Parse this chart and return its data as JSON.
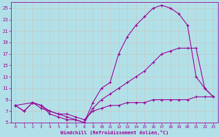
{
  "background_color": "#b2e0e8",
  "grid_color": "#c8c8c8",
  "line_color": "#990099",
  "marker": "+",
  "xlabel": "Windchill (Refroidissement éolien,°C)",
  "xlim": [
    -0.5,
    23.5
  ],
  "ylim": [
    5,
    26
  ],
  "yticks": [
    5,
    7,
    9,
    11,
    13,
    15,
    17,
    19,
    21,
    23,
    25
  ],
  "xticks": [
    0,
    1,
    2,
    3,
    4,
    5,
    6,
    7,
    8,
    9,
    10,
    11,
    12,
    13,
    14,
    15,
    16,
    17,
    18,
    19,
    20,
    21,
    22,
    23
  ],
  "series": [
    {
      "x": [
        0,
        1,
        2,
        3,
        4,
        5,
        6,
        7,
        8,
        9,
        10,
        11,
        12,
        13,
        14,
        15,
        16,
        17,
        18,
        19,
        20,
        21,
        22,
        23
      ],
      "y": [
        8,
        7,
        8.5,
        8,
        6.5,
        6,
        5.5,
        5.5,
        5,
        8.5,
        11,
        12,
        17,
        20,
        22,
        23.5,
        25,
        25.5,
        25,
        24,
        22,
        13,
        11,
        9.5
      ]
    },
    {
      "x": [
        0,
        2,
        3,
        4,
        5,
        6,
        7,
        8,
        9,
        10,
        11,
        12,
        13,
        14,
        15,
        16,
        17,
        18,
        19,
        20,
        21,
        22,
        23
      ],
      "y": [
        8,
        8.5,
        8,
        7,
        6.5,
        6,
        5.5,
        5,
        7.5,
        9,
        10,
        11,
        12,
        13,
        14,
        15.5,
        17,
        17.5,
        18,
        18,
        18,
        11,
        9.5
      ]
    },
    {
      "x": [
        0,
        1,
        2,
        3,
        4,
        5,
        6,
        7,
        8,
        9,
        10,
        11,
        12,
        13,
        14,
        15,
        16,
        17,
        18,
        19,
        20,
        21,
        22,
        23
      ],
      "y": [
        8,
        7,
        8.5,
        7.5,
        7,
        6.5,
        6.5,
        6,
        5.5,
        7,
        7.5,
        8,
        8,
        8.5,
        8.5,
        8.5,
        9,
        9,
        9,
        9,
        9,
        9.5,
        9.5,
        9.5
      ]
    }
  ]
}
